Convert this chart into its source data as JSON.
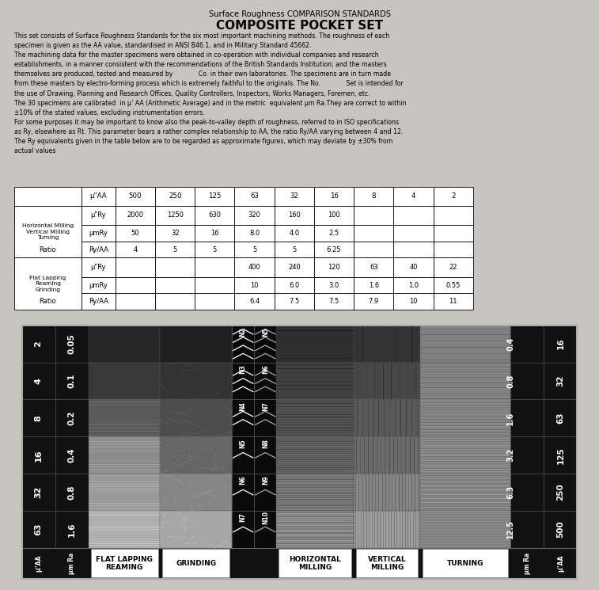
{
  "title1": "Surface Roughness COMPARISON STANDARDS",
  "title2": "COMPOSITE POCKET SET",
  "body_text": "This set consists of Surface Roughness Standards for the six most important machining methods. The roughness of each\nspecimen is given as the AA value, standardised in ANSI B46.1, and in Military Standard 45662.\nThe machining data for the master specimens were obtained in co-operation with individual companies and research\nestablishments, in a manner consistent with the recommendations of the British Standards Institution; and the masters\nthemselves are produced, tested and measured by             Co. in their own laboratories. The specimens are in turn made\nfrom these masters by electro-forming process which is extremely faithful to the originals. The No.             Set is intended for\nthe use of Drawing, Planning and Research Offices, Quality Controllers, Inspectors, Works Managers, Foremen, etc.\nThe 30 specimens are calibrated  in μ’ AA (Arithmetic Average) and in the metric  equivalent μm Ra.They are correct to within\n±10% of the stated values, excluding instrumentation errors.\nFor some purposes it may be important to know also the peak-to-valley depth of roughness, referred to in ISO specifications\nas Ry, elsewhere as Rt. This parameter bears a rather complex relationship to AA, the ratio Ry/AA varying between 4 and 12.\nThe Ry equivalents given in the table below are to be regarded as approximate figures, which may deviate by ±30% from\nactual values",
  "table_headers": [
    "",
    "μ\"AA",
    "500",
    "250",
    "125",
    "63",
    "32",
    "16",
    "8",
    "4",
    "2"
  ],
  "table_row0_label": "Horizontal Milling\nVertical Milling\nTurning",
  "table_row0": [
    "μ\"Ry",
    "2000",
    "1250",
    "630",
    "320",
    "160",
    "100",
    "",
    "",
    ""
  ],
  "table_row1": [
    "μmRy",
    "50",
    "32",
    "16",
    "8.0",
    "4.0",
    "2.5",
    "",
    "",
    ""
  ],
  "table_row2_label": "Ratio",
  "table_row2": [
    "Ry/AA",
    "4",
    "5",
    "5",
    "5",
    "5",
    "6.25",
    "",
    "",
    ""
  ],
  "table_row3_label": "Flat Lapping\nReaming\nGrinding",
  "table_row3": [
    "μ\"Ry",
    "",
    "",
    "",
    "400",
    "240",
    "120",
    "63",
    "40",
    "22"
  ],
  "table_row4": [
    "μmRy",
    "",
    "",
    "",
    "10",
    "6.0",
    "3.0",
    "1.6",
    "1.0",
    "0.55"
  ],
  "table_row5_label": "Ratio",
  "table_row5": [
    "Ry/AA",
    "",
    "",
    "",
    "6.4",
    "7.5",
    "7.5",
    "7.9",
    "10",
    "11"
  ],
  "bg_top": "#f2f0ec",
  "bg_bottom": "#1c1c1c",
  "card_bg": "#2a2a2a",
  "card_border": "#888888",
  "left_labels_aa": [
    "2",
    "4",
    "8",
    "16",
    "32",
    "63"
  ],
  "left_labels_ra": [
    "0.05",
    "0.1",
    "0.2",
    "0.4",
    "0.8",
    "1.6"
  ],
  "right_labels_ra": [
    "0.4",
    "0.8",
    "1.6",
    "3.2",
    "6.3",
    "12.5"
  ],
  "right_labels_aa": [
    "16",
    "32",
    "63",
    "125",
    "250",
    "500"
  ],
  "N_left": [
    "N2",
    "N3",
    "N4",
    "N5",
    "N6",
    "N7"
  ],
  "N_right": [
    "N5",
    "N6",
    "N7",
    "N8",
    "N9",
    "N10"
  ],
  "bottom_labels": [
    "FLAT LAPPING\nREAMING",
    "GRINDING",
    "HORIZONTAL\nMILLING",
    "VERTICAL\nMILLING",
    "TURNING"
  ],
  "flat_grays": [
    0.15,
    0.22,
    0.35,
    0.55,
    0.6,
    0.68
  ],
  "grind_grays": [
    0.12,
    0.2,
    0.3,
    0.4,
    0.52,
    0.65
  ],
  "hmil_grays": [
    0.18,
    0.25,
    0.32,
    0.4,
    0.5,
    0.6
  ],
  "vmil_grays": [
    0.2,
    0.28,
    0.35,
    0.42,
    0.52,
    0.62
  ],
  "turn_grays": [
    0.5,
    0.52,
    0.55,
    0.58,
    0.6,
    0.62
  ]
}
